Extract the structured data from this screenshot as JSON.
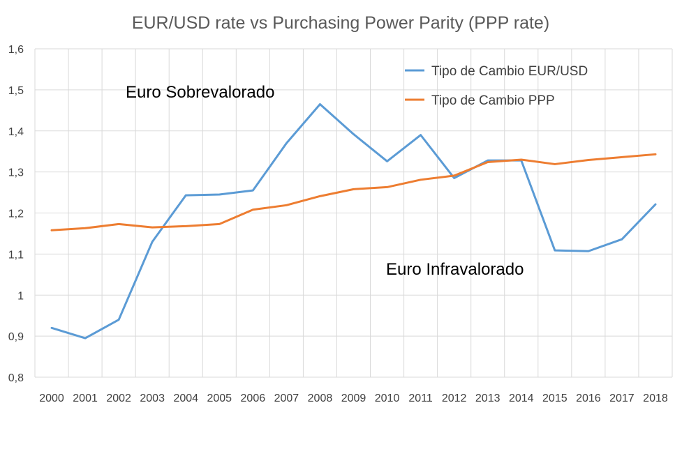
{
  "chart_data": {
    "type": "line",
    "title": "EUR/USD rate vs Purchasing Power Parity (PPP rate)",
    "xlabel": "",
    "ylabel": "",
    "categories": [
      "2000",
      "2001",
      "2002",
      "2003",
      "2004",
      "2005",
      "2006",
      "2007",
      "2008",
      "2009",
      "2010",
      "2011",
      "2012",
      "2013",
      "2014",
      "2015",
      "2016",
      "2017",
      "2018"
    ],
    "y_ticks": [
      "0,8",
      "0,9",
      "1",
      "1,1",
      "1,2",
      "1,3",
      "1,4",
      "1,5",
      "1,6"
    ],
    "ylim": [
      0.8,
      1.6
    ],
    "grid": true,
    "legend_position": "top-right",
    "series": [
      {
        "name": "Tipo de Cambio EUR/USD",
        "color": "#5b9bd5",
        "values": [
          0.92,
          0.895,
          0.94,
          1.13,
          1.243,
          1.245,
          1.255,
          1.37,
          1.465,
          1.392,
          1.326,
          1.39,
          1.285,
          1.328,
          1.328,
          1.109,
          1.107,
          1.136,
          1.221
        ]
      },
      {
        "name": "Tipo de Cambio PPP",
        "color": "#ed7d31",
        "values": [
          1.158,
          1.163,
          1.173,
          1.165,
          1.168,
          1.173,
          1.208,
          1.219,
          1.241,
          1.258,
          1.263,
          1.281,
          1.291,
          1.324,
          1.33,
          1.319,
          1.329,
          1.336,
          1.343
        ]
      }
    ],
    "annotations": [
      "Euro Sobrevalorado",
      "Euro Infravalorado"
    ]
  }
}
